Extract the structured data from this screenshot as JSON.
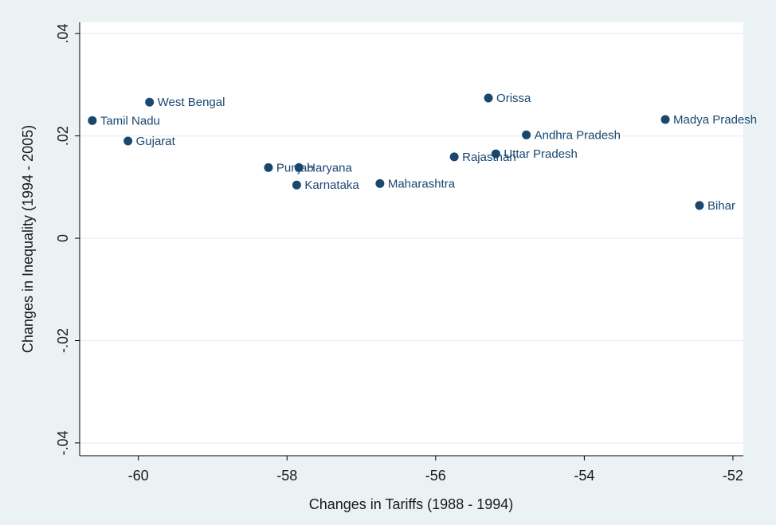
{
  "chart_data": {
    "type": "scatter",
    "xlabel": "Changes in Tariffs (1988 - 1994)",
    "ylabel": "Changes in Inequality (1994 - 2005)",
    "labels": [
      "Tamil Nadu",
      "West Bengal",
      "Gujarat",
      "Punjab",
      "Haryana",
      "Karnataka",
      "Maharashtra",
      "Rajasthan",
      "Orissa",
      "Uttar Pradesh",
      "Andhra Pradesh",
      "Madya Pradesh",
      "Bihar"
    ],
    "x": [
      -60.62,
      -59.85,
      -60.14,
      -58.25,
      -57.84,
      -57.87,
      -56.75,
      -55.75,
      -55.29,
      -55.19,
      -54.78,
      -52.91,
      -52.45
    ],
    "values": [
      0.023,
      0.0266,
      0.019,
      0.0138,
      0.0138,
      0.0104,
      0.0107,
      0.0159,
      0.0274,
      0.0165,
      0.0202,
      0.0232,
      0.0064
    ],
    "color": "#1a476f",
    "xlim": [
      -60.79,
      -51.86
    ],
    "ylim": [
      -0.0425,
      0.0422
    ],
    "xticks": [
      -60,
      -58,
      -56,
      -54,
      -52
    ],
    "yticks": [
      {
        "value": 0.04,
        "label": ".04"
      },
      {
        "value": 0.02,
        "label": ".02"
      },
      0,
      {
        "value": -0.02,
        "label": "-.02"
      },
      {
        "value": -0.04,
        "label": "-.04"
      }
    ],
    "grid": true
  }
}
